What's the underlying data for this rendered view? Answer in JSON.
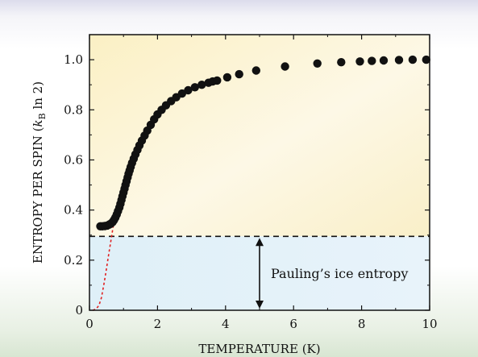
{
  "chart_data": {
    "type": "scatter",
    "xlabel": "TEMPERATURE (K)",
    "ylabel": "ENTROPY PER SPIN (",
    "ylabel_math": {
      "var": "k",
      "sub": "B",
      "rest": " ln 2)"
    },
    "xlim": [
      0,
      10
    ],
    "ylim": [
      0,
      1.1
    ],
    "xticks": [
      0,
      2,
      4,
      6,
      8,
      10
    ],
    "yticks": [
      0,
      0.2,
      0.4,
      0.6,
      0.8,
      1.0
    ],
    "xtick_labels": [
      "0",
      "2",
      "4",
      "6",
      "8",
      "10"
    ],
    "ytick_labels": [
      "0",
      "0.2",
      "0.4",
      "0.6",
      "0.8",
      "1.0"
    ],
    "pauling_level": 0.295,
    "annotation": "Pauling’s ice entropy",
    "arrow_x": 5,
    "colors": {
      "points": "#111111",
      "dashed_curve": "#e02020",
      "upper_region": "#fbf2cc",
      "lower_region": "#e4f1f9"
    },
    "series": [
      {
        "points": [
          [
            0.32,
            0.335
          ],
          [
            0.38,
            0.335
          ],
          [
            0.45,
            0.336
          ],
          [
            0.52,
            0.338
          ],
          [
            0.58,
            0.342
          ],
          [
            0.63,
            0.346
          ],
          [
            0.68,
            0.352
          ],
          [
            0.72,
            0.36
          ],
          [
            0.76,
            0.37
          ],
          [
            0.8,
            0.382
          ],
          [
            0.84,
            0.396
          ],
          [
            0.88,
            0.41
          ],
          [
            0.91,
            0.425
          ],
          [
            0.94,
            0.44
          ],
          [
            0.97,
            0.455
          ],
          [
            1.0,
            0.47
          ],
          [
            1.03,
            0.485
          ],
          [
            1.06,
            0.5
          ],
          [
            1.09,
            0.515
          ],
          [
            1.12,
            0.53
          ],
          [
            1.15,
            0.545
          ],
          [
            1.18,
            0.558
          ],
          [
            1.21,
            0.572
          ],
          [
            1.25,
            0.588
          ],
          [
            1.3,
            0.605
          ],
          [
            1.35,
            0.622
          ],
          [
            1.41,
            0.64
          ],
          [
            1.47,
            0.658
          ],
          [
            1.54,
            0.677
          ],
          [
            1.62,
            0.697
          ],
          [
            1.7,
            0.717
          ],
          [
            1.8,
            0.74
          ],
          [
            1.9,
            0.762
          ],
          [
            2.0,
            0.782
          ],
          [
            2.12,
            0.8
          ],
          [
            2.25,
            0.818
          ],
          [
            2.4,
            0.835
          ],
          [
            2.55,
            0.85
          ],
          [
            2.72,
            0.865
          ],
          [
            2.9,
            0.878
          ],
          [
            3.1,
            0.89
          ],
          [
            3.3,
            0.9
          ],
          [
            3.5,
            0.908
          ],
          [
            3.62,
            0.913
          ],
          [
            3.75,
            0.917
          ],
          [
            4.05,
            0.93
          ],
          [
            4.4,
            0.942
          ],
          [
            4.9,
            0.957
          ],
          [
            5.75,
            0.973
          ],
          [
            6.7,
            0.985
          ],
          [
            7.4,
            0.99
          ],
          [
            7.95,
            0.993
          ],
          [
            8.3,
            0.995
          ],
          [
            8.65,
            0.997
          ],
          [
            9.1,
            0.999
          ],
          [
            9.5,
            1.0
          ],
          [
            9.9,
            1.0
          ]
        ]
      }
    ],
    "dashed_curve": [
      [
        0.1,
        0.0
      ],
      [
        0.2,
        0.005
      ],
      [
        0.28,
        0.02
      ],
      [
        0.35,
        0.05
      ],
      [
        0.42,
        0.1
      ],
      [
        0.48,
        0.15
      ],
      [
        0.55,
        0.21
      ],
      [
        0.62,
        0.27
      ],
      [
        0.68,
        0.32
      ],
      [
        0.73,
        0.36
      ]
    ]
  }
}
